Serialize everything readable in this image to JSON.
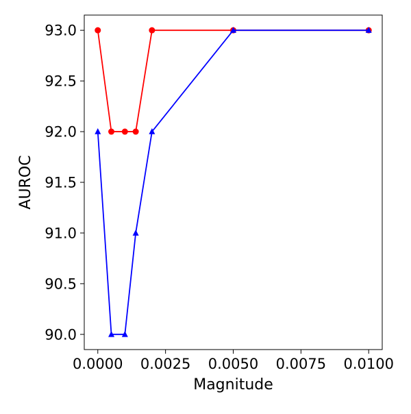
{
  "chart_data": {
    "type": "line",
    "title": "",
    "xlabel": "Magnitude",
    "ylabel": "AUROC",
    "xlim": [
      -0.0005,
      0.0105
    ],
    "ylim": [
      89.85,
      93.15
    ],
    "grid": false,
    "xticks": [
      0.0,
      0.0025,
      0.005,
      0.0075,
      0.01
    ],
    "xtick_labels": [
      "0.0000",
      "0.0025",
      "0.0050",
      "0.0075",
      "0.0100"
    ],
    "yticks": [
      90.0,
      90.5,
      91.0,
      91.5,
      92.0,
      92.5,
      93.0
    ],
    "ytick_labels": [
      "90.0",
      "90.5",
      "91.0",
      "91.5",
      "92.0",
      "92.5",
      "93.0"
    ],
    "series": [
      {
        "color": "#ff0000",
        "marker": "circle",
        "x": [
          0.0,
          0.0005,
          0.001,
          0.0014,
          0.002,
          0.005,
          0.01
        ],
        "y": [
          93.0,
          92.0,
          92.0,
          92.0,
          93.0,
          93.0,
          93.0
        ]
      },
      {
        "color": "#0000ff",
        "marker": "triangle",
        "x": [
          0.0,
          0.0005,
          0.001,
          0.0014,
          0.002,
          0.005,
          0.01
        ],
        "y": [
          92.0,
          90.0,
          90.0,
          91.0,
          92.0,
          93.0,
          93.0
        ]
      }
    ]
  }
}
